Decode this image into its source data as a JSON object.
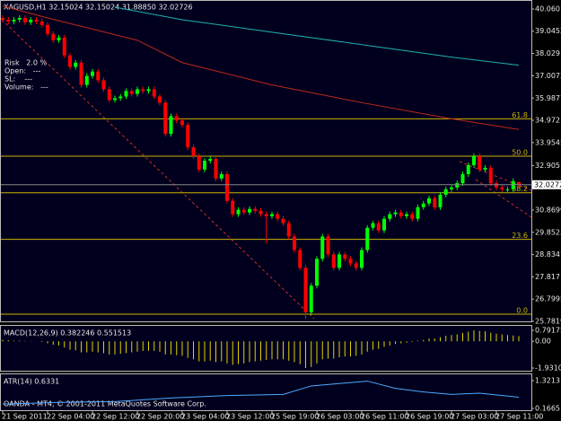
{
  "chart_data": [
    {
      "type": "candlestick",
      "title": "XAGUSD,H1 32.15024 32.15024 31.88850 32.02726",
      "annotations": [
        "Risk   2.0 %",
        "Open:   ---",
        "SL:    ---",
        "Volume:   ---"
      ],
      "open": [
        39.65,
        39.57,
        39.49,
        39.57,
        39.65,
        39.45,
        39.57,
        39.49,
        39.33,
        38.92,
        38.63,
        38.75,
        37.94,
        37.41,
        37.61,
        36.59,
        37.0,
        37.2,
        36.8,
        36.39,
        35.9,
        35.98,
        36.06,
        36.31,
        36.18,
        36.39,
        36.31,
        36.39,
        36.06,
        35.78,
        34.35,
        35.16,
        34.96,
        34.76,
        33.74,
        33.33,
        32.72,
        33.12,
        33.21,
        32.31,
        32.51,
        31.29,
        30.68,
        30.88,
        30.76,
        30.92,
        30.84,
        30.68,
        30.59,
        30.68,
        30.47,
        30.27,
        29.66,
        29.04,
        28.23,
        26.19,
        27.41,
        28.64,
        29.66,
        28.84,
        28.23,
        28.84,
        28.64,
        28.43,
        28.23,
        29.04,
        30.06,
        30.27,
        29.94,
        30.47,
        30.68,
        30.76,
        30.59,
        30.68,
        30.47,
        31.0,
        31.17,
        31.41,
        31.0,
        31.57,
        31.82,
        31.9,
        32.1,
        32.51,
        32.92,
        33.33,
        32.72,
        32.8,
        32.1,
        31.9,
        31.82,
        31.82,
        32.15024
      ],
      "high": [
        39.77,
        39.69,
        39.69,
        39.77,
        39.77,
        39.69,
        39.69,
        39.61,
        39.45,
        39.04,
        38.87,
        38.87,
        38.06,
        37.73,
        37.73,
        37.12,
        37.32,
        37.32,
        36.92,
        36.51,
        36.1,
        36.18,
        36.43,
        36.43,
        36.51,
        36.51,
        36.51,
        36.51,
        36.18,
        35.9,
        35.28,
        35.28,
        35.08,
        34.88,
        33.86,
        33.45,
        33.24,
        33.33,
        33.33,
        32.63,
        32.63,
        31.41,
        31.0,
        31.0,
        31.04,
        31.04,
        30.96,
        30.8,
        30.8,
        30.8,
        30.59,
        30.39,
        29.78,
        29.16,
        28.35,
        27.53,
        28.76,
        29.78,
        29.78,
        28.96,
        28.96,
        28.96,
        28.76,
        28.55,
        29.16,
        30.18,
        30.39,
        30.39,
        30.59,
        30.8,
        30.88,
        30.88,
        30.8,
        30.8,
        31.12,
        31.29,
        31.53,
        31.53,
        31.69,
        31.94,
        32.02,
        32.22,
        32.63,
        33.04,
        33.45,
        33.45,
        32.92,
        32.92,
        32.22,
        32.02,
        31.94,
        32.31,
        32.15024
      ],
      "low": [
        39.45,
        39.37,
        39.37,
        39.45,
        39.33,
        39.33,
        39.37,
        39.21,
        38.8,
        38.51,
        38.51,
        37.82,
        37.29,
        37.29,
        36.47,
        36.47,
        36.88,
        36.68,
        36.27,
        35.78,
        35.78,
        35.86,
        35.94,
        36.06,
        36.06,
        36.19,
        36.19,
        35.94,
        35.66,
        34.23,
        34.23,
        34.84,
        34.64,
        33.62,
        33.21,
        32.6,
        32.6,
        33.0,
        32.19,
        32.19,
        31.17,
        30.56,
        30.56,
        30.64,
        30.64,
        30.72,
        30.56,
        29.35,
        30.47,
        30.35,
        30.15,
        29.54,
        28.92,
        28.11,
        25.9,
        26.07,
        27.29,
        28.52,
        28.72,
        28.11,
        28.11,
        28.52,
        28.31,
        28.11,
        28.11,
        28.92,
        29.94,
        29.82,
        29.82,
        30.35,
        30.56,
        30.47,
        30.47,
        30.35,
        30.35,
        30.88,
        31.05,
        30.88,
        30.88,
        31.45,
        31.7,
        31.78,
        31.98,
        32.39,
        32.8,
        32.6,
        32.6,
        31.98,
        31.78,
        31.7,
        31.7,
        31.7,
        31.8885
      ],
      "close": [
        39.57,
        39.49,
        39.57,
        39.65,
        39.45,
        39.57,
        39.49,
        39.33,
        38.92,
        38.63,
        38.75,
        37.94,
        37.41,
        37.61,
        36.59,
        37.0,
        37.2,
        36.8,
        36.39,
        35.9,
        35.98,
        36.06,
        36.31,
        36.18,
        36.39,
        36.31,
        36.39,
        36.06,
        35.78,
        34.35,
        35.16,
        34.96,
        34.76,
        33.74,
        33.33,
        32.72,
        33.12,
        33.21,
        32.31,
        32.51,
        31.29,
        30.68,
        30.88,
        30.76,
        30.92,
        30.84,
        30.68,
        30.59,
        30.68,
        30.47,
        30.27,
        29.66,
        29.04,
        28.23,
        26.19,
        27.41,
        28.64,
        29.66,
        28.84,
        28.23,
        28.84,
        28.64,
        28.43,
        28.23,
        29.04,
        30.06,
        30.27,
        29.94,
        30.47,
        30.68,
        30.76,
        30.59,
        30.68,
        30.47,
        31.0,
        31.17,
        31.41,
        31.0,
        31.57,
        31.82,
        31.9,
        32.1,
        32.51,
        32.92,
        33.33,
        32.72,
        32.8,
        32.1,
        31.9,
        31.82,
        31.82,
        32.19,
        32.02726
      ],
      "up_color": "#00ff00",
      "down_color": "#ff0000",
      "ylim": [
        25.7819,
        40.06011
      ],
      "yticks": [
        40.06011,
        39.04525,
        38.0291,
        37.0073,
        35.9877,
        34.9721,
        33.9545,
        32.9051,
        30.8699,
        29.8523,
        28.8347,
        27.8171,
        26.7995,
        25.7819
      ],
      "xticks": [
        {
          "value": 0,
          "label": "21 Sep 2011"
        },
        {
          "value": 8,
          "label": "22 Sep 04:00"
        },
        {
          "value": 16,
          "label": "22 Sep 12:00"
        },
        {
          "value": 24,
          "label": "22 Sep 20:00"
        },
        {
          "value": 32,
          "label": "23 Sep 04:00"
        },
        {
          "value": 40,
          "label": "23 Sep 12:00"
        },
        {
          "value": 48,
          "label": "25 Sep 19:00"
        },
        {
          "value": 56,
          "label": "26 Sep 03:00"
        },
        {
          "value": 64,
          "label": "26 Sep 11:00"
        },
        {
          "value": 72,
          "label": "26 Sep 19:00"
        },
        {
          "value": 80,
          "label": "27 Sep 03:00"
        },
        {
          "value": 88,
          "label": "27 Sep 11:00"
        }
      ],
      "moving_averages": [
        {
          "color": "#20b0b0",
          "x": [
            20,
            32,
            48,
            64,
            80,
            92
          ],
          "values": [
            40.14,
            39.57,
            39.0,
            38.43,
            37.86,
            37.49
          ]
        },
        {
          "color": "#c02818",
          "x": [
            0,
            8,
            24,
            32,
            48,
            64,
            80,
            92
          ],
          "values": [
            40.2,
            39.65,
            38.63,
            37.61,
            36.59,
            35.78,
            35.04,
            34.55
          ]
        }
      ],
      "levels": [
        {
          "label": "61.8",
          "value": 35.04
        },
        {
          "label": "50.0",
          "value": 33.33
        },
        {
          "label": "38.2",
          "value": 31.66
        },
        {
          "label": "23.6",
          "value": 29.53
        },
        {
          "label": "0.0",
          "value": 26.11
        }
      ],
      "level_color": "#c8b400"
    },
    {
      "type": "bar",
      "title": "MACD(12,26,9) 0.382246 0.551513",
      "color": "#e0d000",
      "values": [
        0.1,
        0.08,
        0.05,
        0.05,
        0.03,
        0.02,
        0,
        -0.05,
        -0.15,
        -0.25,
        -0.3,
        -0.45,
        -0.6,
        -0.65,
        -0.8,
        -0.8,
        -0.75,
        -0.8,
        -0.85,
        -0.95,
        -0.95,
        -0.9,
        -0.85,
        -0.8,
        -0.75,
        -0.7,
        -0.68,
        -0.7,
        -0.75,
        -0.95,
        -0.95,
        -1.0,
        -1.05,
        -1.2,
        -1.3,
        -1.45,
        -1.45,
        -1.4,
        -1.5,
        -1.45,
        -1.6,
        -1.7,
        -1.65,
        -1.6,
        -1.5,
        -1.45,
        -1.4,
        -1.35,
        -1.3,
        -1.3,
        -1.3,
        -1.4,
        -1.5,
        -1.65,
        -1.93,
        -1.85,
        -1.6,
        -1.3,
        -1.25,
        -1.25,
        -1.15,
        -1.1,
        -1.1,
        -1.05,
        -0.95,
        -0.75,
        -0.6,
        -0.55,
        -0.4,
        -0.3,
        -0.2,
        -0.15,
        -0.1,
        -0.05,
        0.05,
        0.1,
        0.2,
        0.2,
        0.3,
        0.4,
        0.45,
        0.5,
        0.6,
        0.7,
        0.79,
        0.75,
        0.72,
        0.62,
        0.55,
        0.5,
        0.45,
        0.42,
        0.38
      ],
      "ylim": [
        -1.93103,
        0.791758
      ],
      "yticks": [
        0.791758,
        {
          "value": 0,
          "label": "0.00"
        },
        -1.93103
      ]
    },
    {
      "type": "line",
      "title": "ATR(14) 0.6331",
      "color": "#4fa8ff",
      "x": [
        0,
        10,
        20,
        30,
        40,
        50,
        55,
        60,
        65,
        70,
        75,
        80,
        85,
        92
      ],
      "values": [
        0.35,
        0.42,
        0.45,
        0.6,
        0.7,
        0.75,
        1.1,
        1.2,
        1.3,
        1.0,
        0.85,
        0.75,
        0.8,
        0.63
      ],
      "ylim": [
        0.1665,
        1.3213
      ],
      "yticks": [
        1.3213,
        0.1665
      ],
      "footer": "OANDA - MT4, © 2001-2011 MetaQuotes Software Corp."
    }
  ]
}
